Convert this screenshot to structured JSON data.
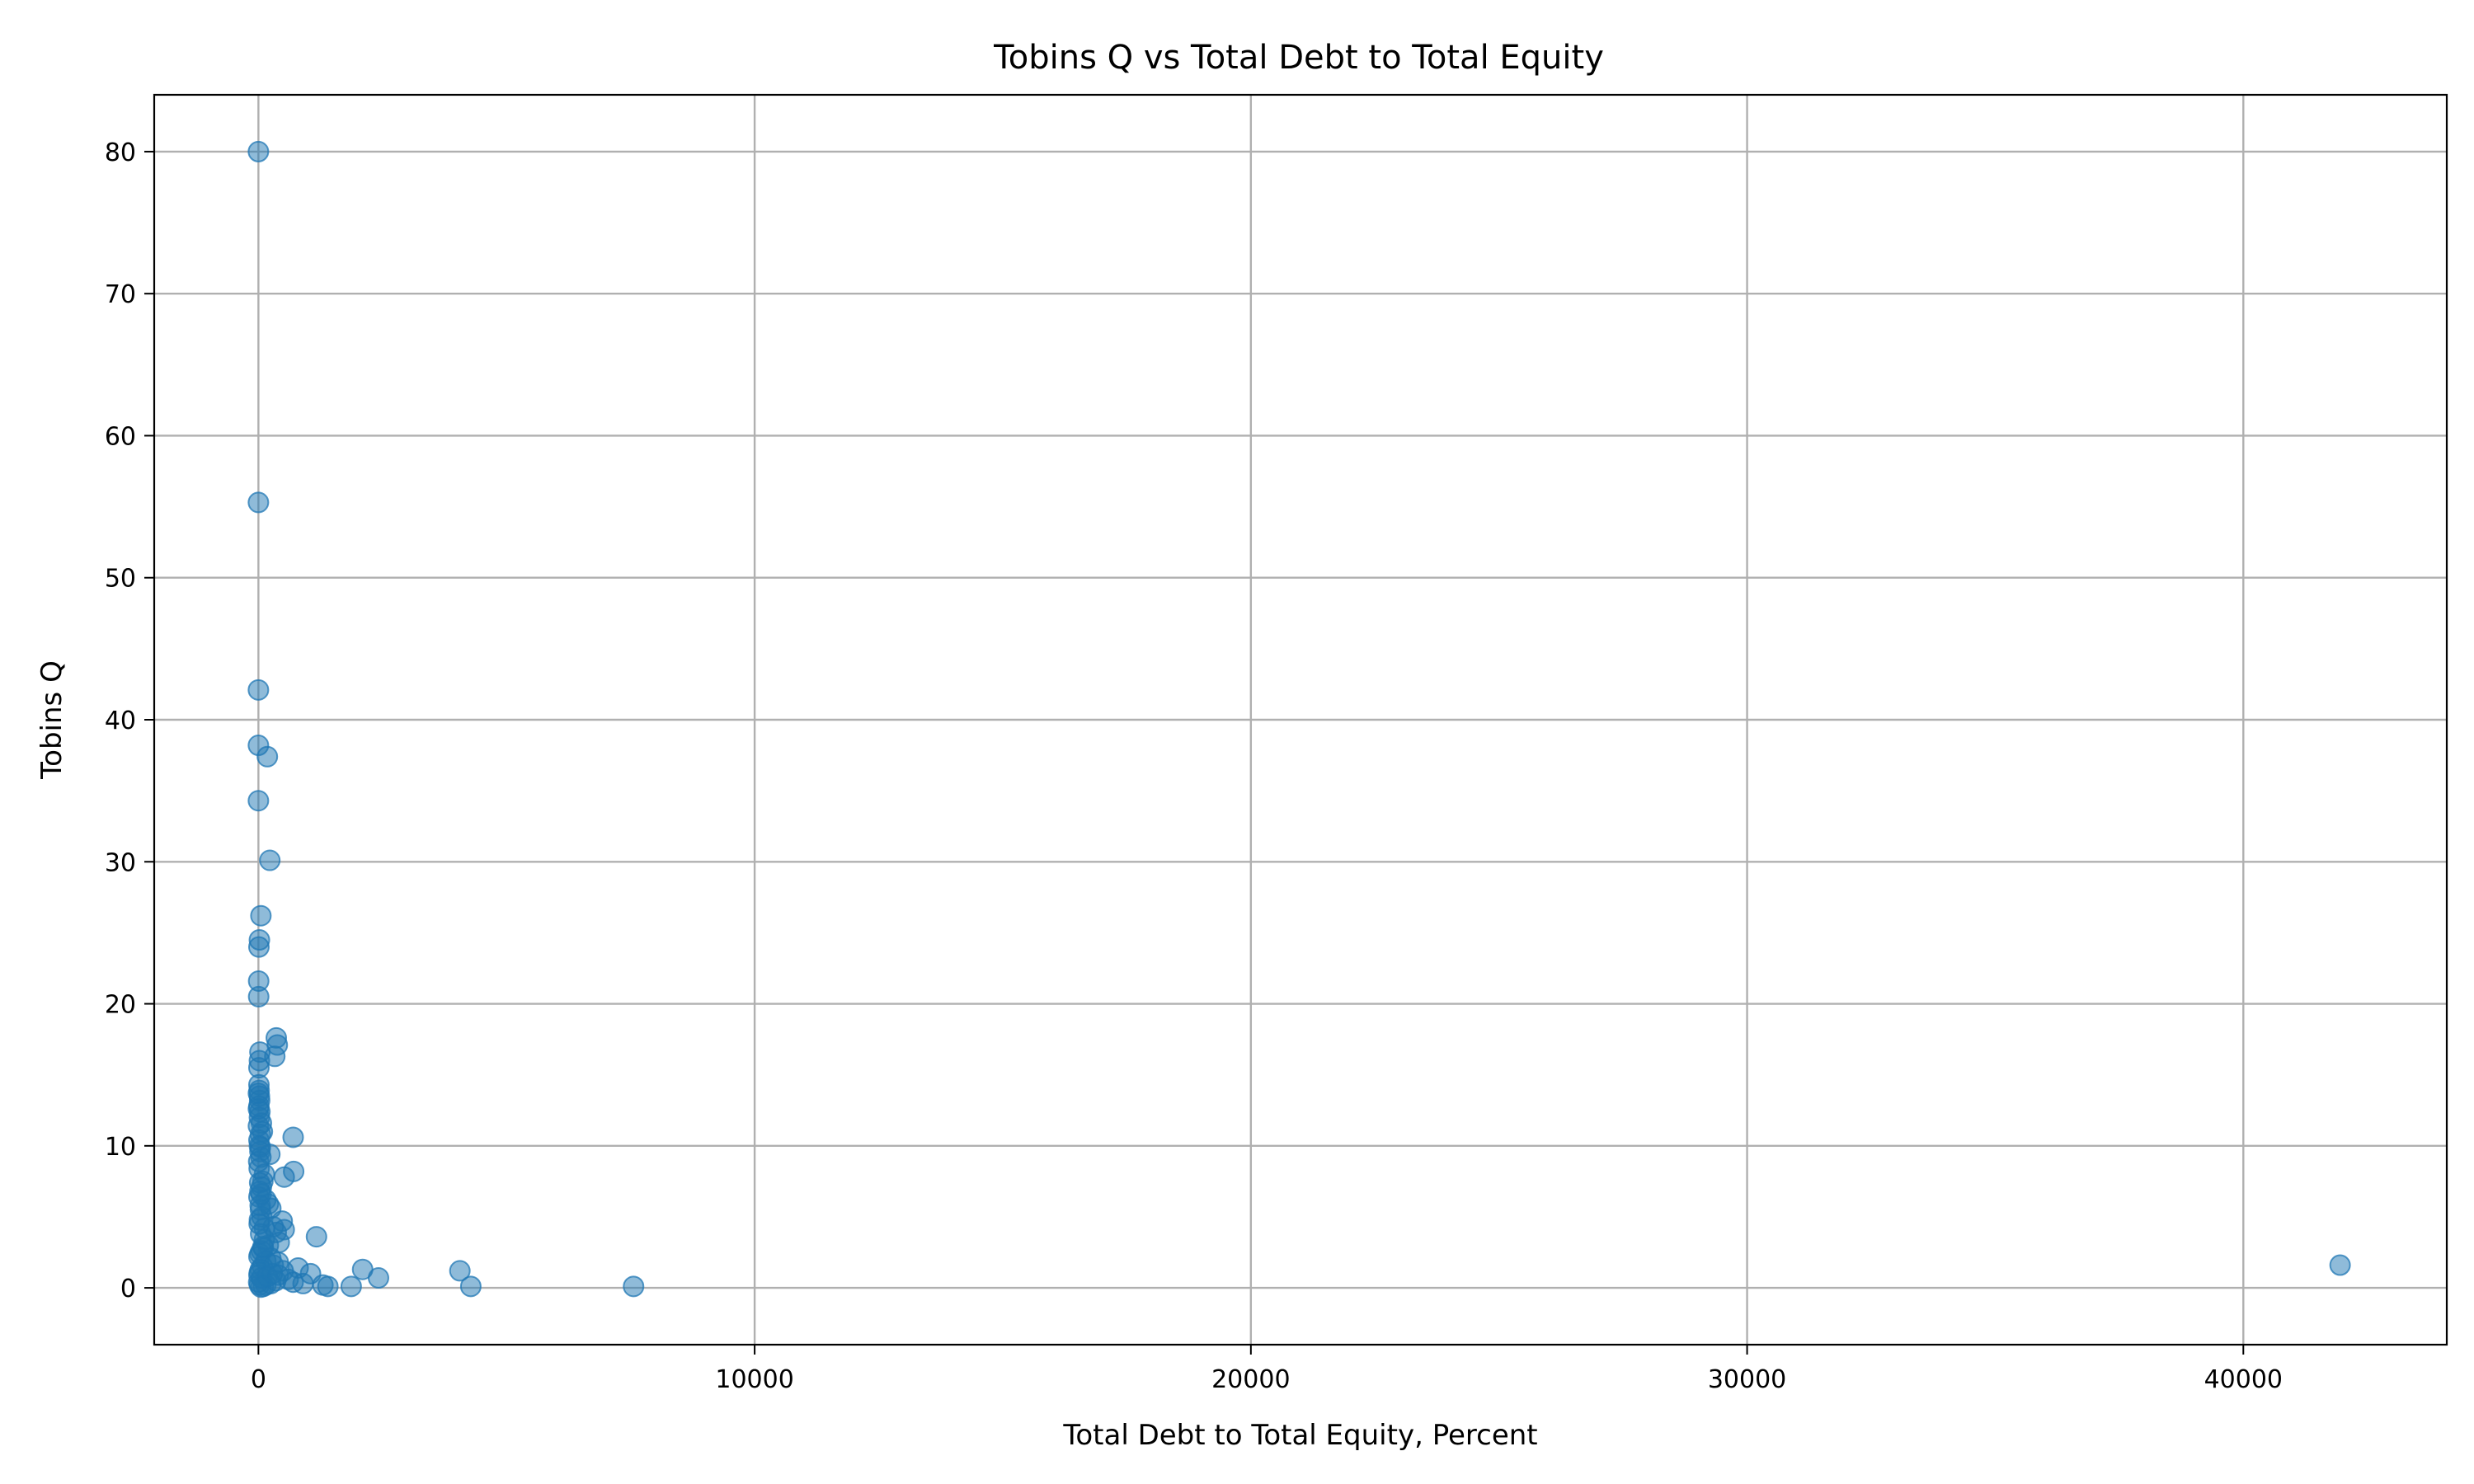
{
  "chart_data": {
    "type": "scatter",
    "title": "Tobins Q vs Total Debt to Total Equity",
    "xlabel": "Total Debt to Total Equity, Percent",
    "ylabel": "Tobins Q",
    "xlim": [
      -2100,
      44100
    ],
    "ylim": [
      -4,
      84
    ],
    "xticks": [
      0,
      10000,
      20000,
      30000,
      40000
    ],
    "xtick_labels": [
      "0",
      "10000",
      "20000",
      "30000",
      "40000"
    ],
    "yticks": [
      0,
      10,
      20,
      30,
      40,
      50,
      60,
      70,
      80
    ],
    "ytick_labels": [
      "0",
      "10",
      "20",
      "30",
      "40",
      "50",
      "60",
      "70",
      "80"
    ],
    "grid": true,
    "color": "#1f77b4",
    "points": [
      [
        0,
        80.0
      ],
      [
        0,
        55.3
      ],
      [
        0,
        42.1
      ],
      [
        0,
        38.2
      ],
      [
        0,
        34.3
      ],
      [
        180,
        37.4
      ],
      [
        230,
        30.1
      ],
      [
        50,
        26.2
      ],
      [
        20,
        24.5
      ],
      [
        10,
        24.0
      ],
      [
        5,
        21.6
      ],
      [
        5,
        20.5
      ],
      [
        360,
        17.6
      ],
      [
        380,
        17.1
      ],
      [
        330,
        16.3
      ],
      [
        30,
        16.6
      ],
      [
        20,
        16.0
      ],
      [
        10,
        15.5
      ],
      [
        10,
        14.3
      ],
      [
        15,
        13.9
      ],
      [
        20,
        13.5
      ],
      [
        25,
        13.2
      ],
      [
        10,
        12.8
      ],
      [
        30,
        12.4
      ],
      [
        20,
        12.0
      ],
      [
        60,
        11.6
      ],
      [
        80,
        11.0
      ],
      [
        40,
        10.8
      ],
      [
        10,
        10.4
      ],
      [
        20,
        10.0
      ],
      [
        30,
        9.6
      ],
      [
        50,
        9.2
      ],
      [
        230,
        9.4
      ],
      [
        700,
        10.6
      ],
      [
        710,
        8.2
      ],
      [
        520,
        7.8
      ],
      [
        120,
        8.0
      ],
      [
        90,
        7.5
      ],
      [
        60,
        7.1
      ],
      [
        30,
        6.8
      ],
      [
        10,
        6.4
      ],
      [
        150,
        6.2
      ],
      [
        200,
        5.9
      ],
      [
        250,
        5.6
      ],
      [
        40,
        5.5
      ],
      [
        70,
        5.0
      ],
      [
        20,
        4.8
      ],
      [
        480,
        4.7
      ],
      [
        520,
        4.1
      ],
      [
        300,
        4.3
      ],
      [
        360,
        3.9
      ],
      [
        120,
        4.2
      ],
      [
        1170,
        3.6
      ],
      [
        420,
        3.2
      ],
      [
        200,
        3.0
      ],
      [
        100,
        2.8
      ],
      [
        60,
        2.6
      ],
      [
        30,
        2.4
      ],
      [
        10,
        2.2
      ],
      [
        250,
        2.1
      ],
      [
        150,
        1.9
      ],
      [
        400,
        1.8
      ],
      [
        300,
        1.6
      ],
      [
        80,
        1.5
      ],
      [
        40,
        1.3
      ],
      [
        20,
        1.1
      ],
      [
        10,
        0.9
      ],
      [
        500,
        1.2
      ],
      [
        800,
        1.4
      ],
      [
        1050,
        1.0
      ],
      [
        2100,
        1.3
      ],
      [
        2420,
        0.7
      ],
      [
        4060,
        1.2
      ],
      [
        600,
        0.6
      ],
      [
        700,
        0.4
      ],
      [
        900,
        0.3
      ],
      [
        1300,
        0.2
      ],
      [
        1400,
        0.1
      ],
      [
        1870,
        0.1
      ],
      [
        4280,
        0.1
      ],
      [
        7560,
        0.1
      ],
      [
        350,
        0.5
      ],
      [
        250,
        0.3
      ],
      [
        150,
        0.2
      ],
      [
        100,
        0.1
      ],
      [
        50,
        0.05
      ],
      [
        20,
        0.2
      ],
      [
        5,
        0.4
      ],
      [
        60,
        0.7
      ],
      [
        180,
        0.8
      ],
      [
        280,
        1.0
      ],
      [
        400,
        0.9
      ],
      [
        120,
        3.4
      ],
      [
        90,
        2.9
      ],
      [
        45,
        3.8
      ],
      [
        15,
        4.5
      ],
      [
        35,
        5.8
      ],
      [
        55,
        6.6
      ],
      [
        25,
        7.4
      ],
      [
        15,
        8.4
      ],
      [
        5,
        8.9
      ],
      [
        40,
        9.9
      ],
      [
        0,
        11.4
      ],
      [
        0,
        12.6
      ],
      [
        0,
        13.7
      ],
      [
        41950,
        1.6
      ]
    ]
  }
}
